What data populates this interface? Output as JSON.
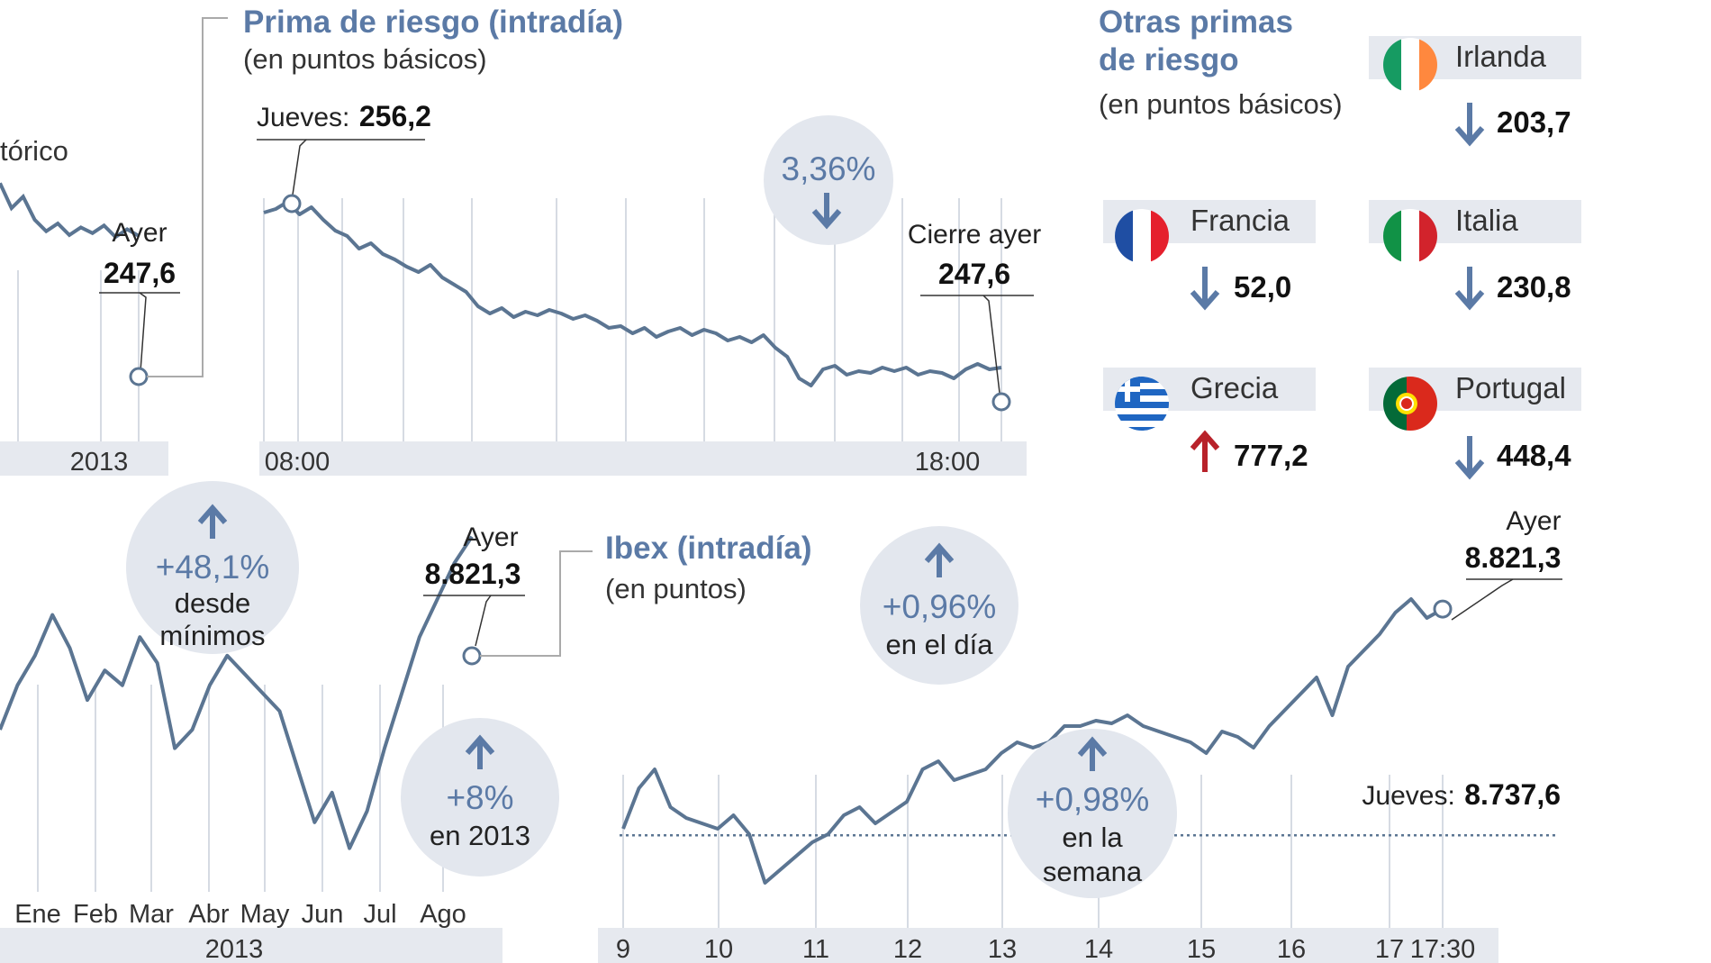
{
  "colors": {
    "line": "#5b7592",
    "accent_blue": "#5b7aa6",
    "axis_band": "#e6e9ef",
    "bubble": "#e3e7ee",
    "up_red": "#b8222a",
    "grid": "#d6dbe3"
  },
  "chart_data": [
    {
      "type": "line",
      "id": "prima-historico",
      "title": "",
      "note_label": "tórico",
      "x_band_label": "2013",
      "series": [
        {
          "values": [
            275,
            262,
            268,
            256,
            250,
            254,
            248,
            252,
            249,
            253,
            247,
            251,
            247.6
          ]
        }
      ],
      "ylim": [
        150,
        300
      ],
      "annotation": {
        "label": "Ayer",
        "value": "247,6"
      }
    },
    {
      "type": "line",
      "id": "prima-intradia",
      "title": "Prima de riesgo (intradía)",
      "subtitle": "(en puntos básicos)",
      "xlabel": "",
      "ylabel": "",
      "x_tick_labels": [
        "08:00",
        "18:00"
      ],
      "ylim": [
        240,
        262
      ],
      "series": [
        {
          "values": [
            256.2,
            256.4,
            256.8,
            256.1,
            256.5,
            255.8,
            255.2,
            254.9,
            254.2,
            254.5,
            253.9,
            253.6,
            253.2,
            252.9,
            253.3,
            252.6,
            252.2,
            251.8,
            251.0,
            250.6,
            250.9,
            250.4,
            250.7,
            250.5,
            250.8,
            250.6,
            250.3,
            250.5,
            250.2,
            249.8,
            249.9,
            249.5,
            249.8,
            249.3,
            249.6,
            249.8,
            249.4,
            249.7,
            249.5,
            249.1,
            249.3,
            249.0,
            249.4,
            248.7,
            248.2,
            247.0,
            246.6,
            247.5,
            247.7,
            247.2,
            247.4,
            247.3,
            247.6,
            247.4,
            247.6,
            247.2,
            247.4,
            247.3,
            247.0,
            247.5,
            247.8,
            247.5,
            247.6
          ]
        }
      ],
      "annotations": [
        {
          "label": "Jueves:",
          "value": "256,2"
        },
        {
          "label": "Cierre ayer",
          "value": "247,6"
        }
      ],
      "bubble": {
        "value": "3,36%",
        "direction": "down"
      }
    },
    {
      "type": "line",
      "id": "ibex-2013",
      "title": "",
      "x_tick_labels": [
        "Ene",
        "Feb",
        "Mar",
        "Abr",
        "May",
        "Jun",
        "Jul",
        "Ago"
      ],
      "x_band_label": "2013",
      "ylim": [
        7400,
        9200
      ],
      "series": [
        {
          "values": [
            8300,
            8420,
            8500,
            8610,
            8520,
            8380,
            8460,
            8420,
            8550,
            8480,
            8250,
            8300,
            8420,
            8500,
            8450,
            8400,
            8350,
            8200,
            8050,
            8130,
            7980,
            8080,
            8250,
            8400,
            8550,
            8650,
            8750,
            8821.3
          ]
        }
      ],
      "annotation": {
        "label": "Ayer",
        "value": "8.821,3"
      },
      "bubbles": [
        {
          "value": "+48,1%",
          "text": [
            "desde",
            "mínimos"
          ],
          "direction": "up"
        },
        {
          "value": "+8%",
          "text": [
            "en 2013"
          ],
          "direction": "up"
        }
      ]
    },
    {
      "type": "line",
      "id": "ibex-intradia",
      "title": "Ibex (intradía)",
      "subtitle": "(en puntos)",
      "xlabel": "",
      "ylabel": "",
      "x_tick_labels": [
        "9",
        "10",
        "11",
        "12",
        "13",
        "14",
        "15",
        "16",
        "17",
        "17:30"
      ],
      "ylim": [
        8680,
        8860
      ],
      "reference_line": {
        "label": "Jueves:",
        "value": "8.737,6",
        "y": 8737.6
      },
      "series": [
        {
          "values": [
            8740,
            8755,
            8762,
            8748,
            8744,
            8742,
            8740,
            8745,
            8738,
            8720,
            8725,
            8730,
            8735,
            8738,
            8745,
            8748,
            8742,
            8746,
            8750,
            8762,
            8765,
            8758,
            8760,
            8762,
            8768,
            8772,
            8770,
            8772,
            8778,
            8778,
            8780,
            8779,
            8782,
            8778,
            8776,
            8774,
            8772,
            8768,
            8776,
            8774,
            8770,
            8778,
            8784,
            8790,
            8796,
            8782,
            8800,
            8806,
            8812,
            8820,
            8825,
            8818,
            8821.3
          ]
        }
      ],
      "annotation": {
        "label": "Ayer",
        "value": "8.821,3"
      },
      "bubbles": [
        {
          "value": "+0,96%",
          "text": [
            "en el día"
          ],
          "direction": "up"
        },
        {
          "value": "+0,98%",
          "text": [
            "en la",
            "semana"
          ],
          "direction": "up"
        }
      ]
    }
  ],
  "otras_primas": {
    "title_lines": [
      "Otras primas",
      "de riesgo"
    ],
    "subtitle": "(en puntos básicos)",
    "countries": [
      {
        "name": "Irlanda",
        "value": "203,7",
        "direction": "down",
        "flag": "ireland-flag-icon"
      },
      {
        "name": "Francia",
        "value": "52,0",
        "direction": "down",
        "flag": "france-flag-icon"
      },
      {
        "name": "Italia",
        "value": "230,8",
        "direction": "down",
        "flag": "italy-flag-icon"
      },
      {
        "name": "Grecia",
        "value": "777,2",
        "direction": "up",
        "flag": "greece-flag-icon"
      },
      {
        "name": "Portugal",
        "value": "448,4",
        "direction": "down",
        "flag": "portugal-flag-icon"
      }
    ]
  }
}
